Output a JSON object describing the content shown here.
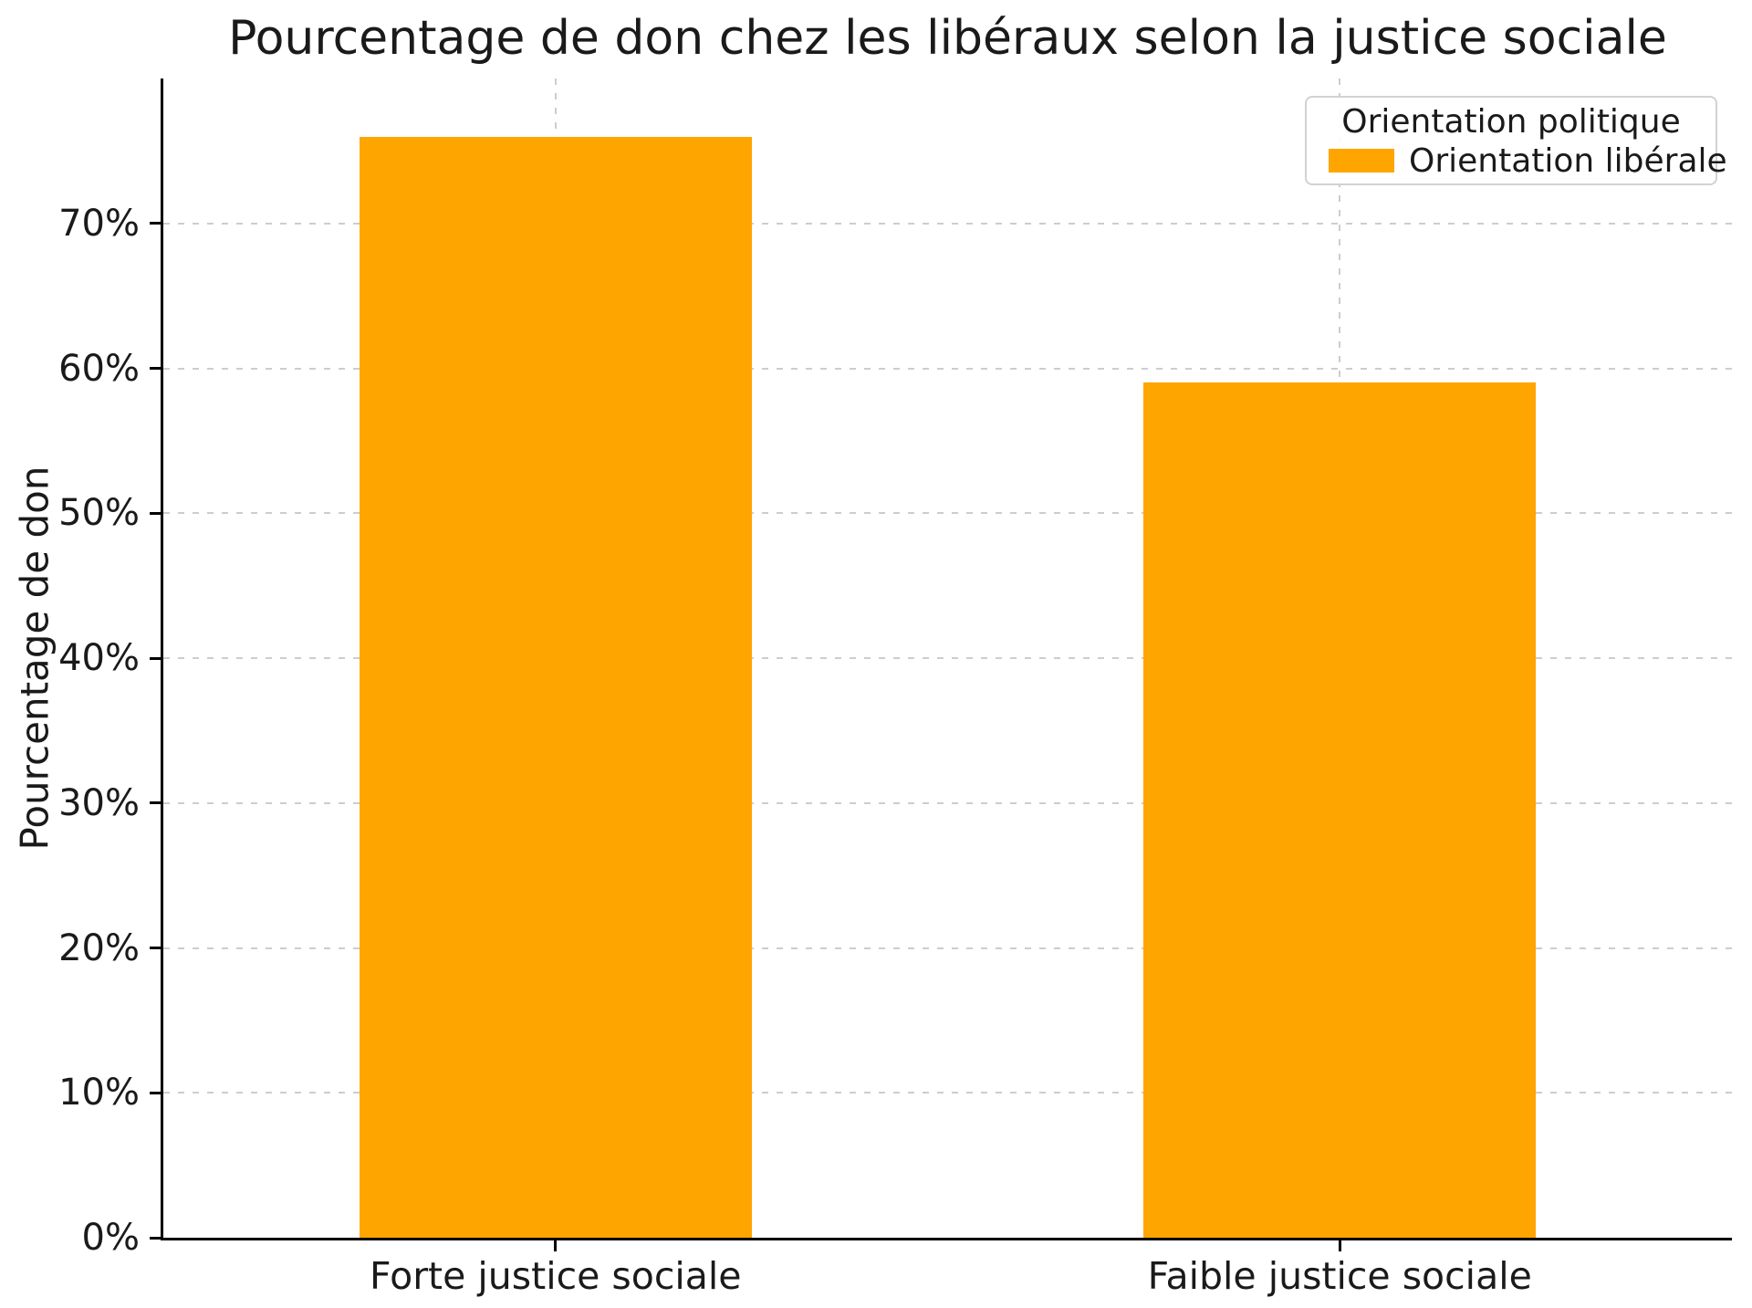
{
  "chart_data": {
    "type": "bar",
    "title": "Pourcentage de don chez les libéraux selon la justice sociale",
    "xlabel": "",
    "ylabel": "Pourcentage de don",
    "categories": [
      "Forte justice sociale",
      "Faible justice sociale"
    ],
    "series": [
      {
        "name": "Orientation libérale",
        "values": [
          76,
          59
        ]
      }
    ],
    "ylim": [
      0,
      80
    ],
    "yticks": [
      0,
      10,
      20,
      30,
      40,
      50,
      60,
      70
    ],
    "ytick_suffix": "%",
    "bar_color": "#FFA500",
    "bar_width_frac": 0.25,
    "grid": true,
    "gridline_color": "#cdcdcd",
    "legend": {
      "title": "Orientation politique",
      "position": "top-right"
    }
  }
}
